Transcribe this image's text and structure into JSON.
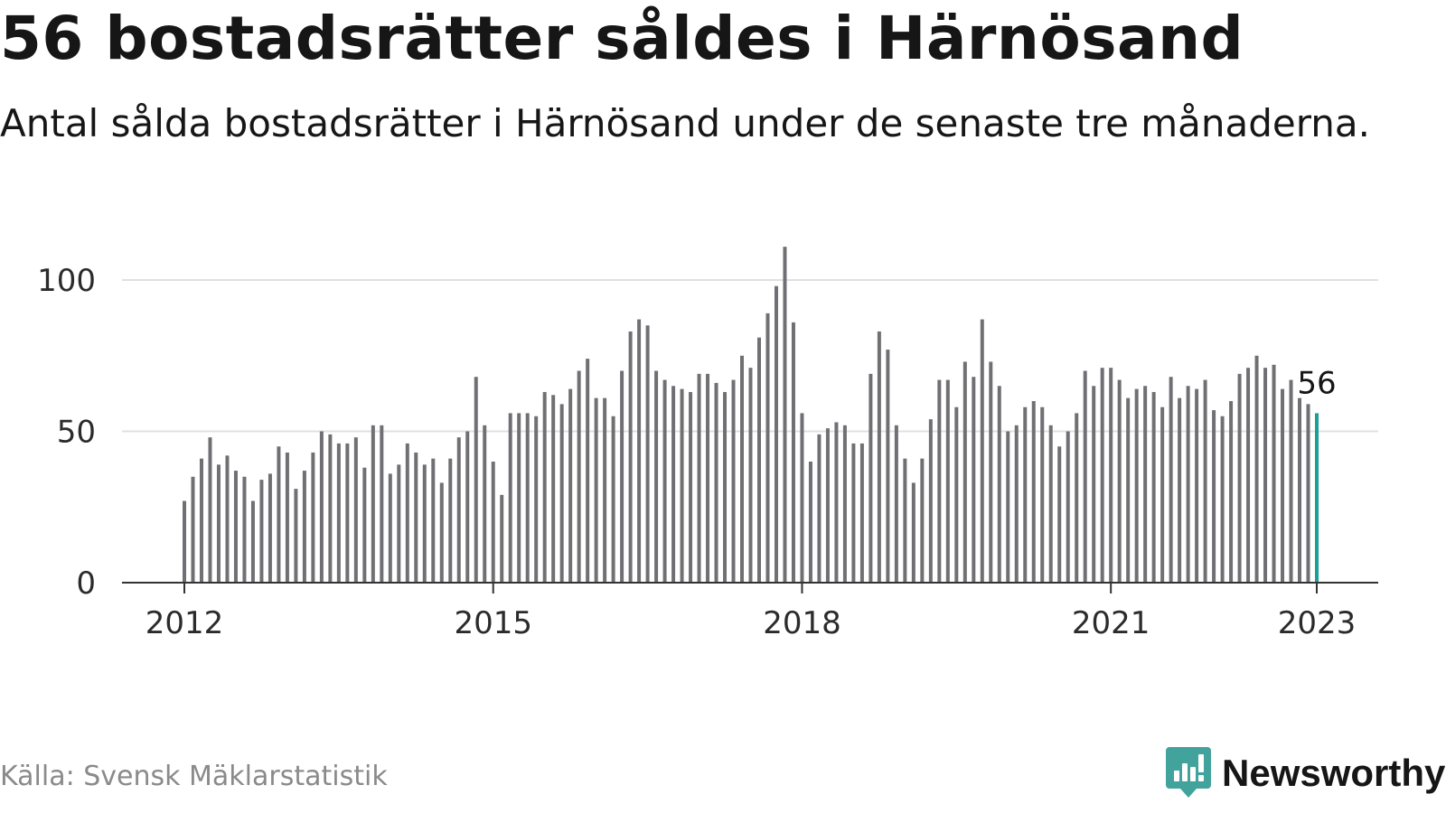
{
  "title": "56 bostadsrätter såldes i Härnösand",
  "subtitle": "Antal sålda bostadsrätter i Härnösand under de senaste tre månaderna.",
  "source": "Källa: Svensk Mäklarstatistik",
  "brand": "Newsworthy",
  "colors": {
    "bar": "#707074",
    "highlight": "#1a9f99",
    "grid": "#e0e0e0",
    "axis": "#333333",
    "brand": "#42a39c"
  },
  "chart_data": {
    "type": "bar",
    "title": "56 bostadsrätter såldes i Härnösand",
    "subtitle": "Antal sålda bostadsrätter i Härnösand under de senaste tre månaderna.",
    "xlabel": "",
    "ylabel": "",
    "ylim": [
      0,
      115
    ],
    "yticks": [
      0,
      50,
      100
    ],
    "xticks": [
      "2012",
      "2015",
      "2018",
      "2021",
      "2023"
    ],
    "grid": true,
    "legend": "none",
    "start": "2012-01",
    "values": [
      27,
      35,
      41,
      48,
      39,
      42,
      37,
      35,
      27,
      34,
      36,
      45,
      43,
      31,
      37,
      43,
      50,
      49,
      46,
      46,
      48,
      38,
      52,
      52,
      36,
      39,
      46,
      43,
      39,
      41,
      33,
      41,
      48,
      50,
      68,
      52,
      40,
      29,
      56,
      56,
      56,
      55,
      63,
      62,
      59,
      64,
      70,
      74,
      61,
      61,
      55,
      70,
      83,
      87,
      85,
      70,
      67,
      65,
      64,
      63,
      69,
      69,
      66,
      63,
      67,
      75,
      71,
      81,
      89,
      98,
      111,
      86,
      56,
      40,
      49,
      51,
      53,
      52,
      46,
      46,
      69,
      83,
      77,
      52,
      41,
      33,
      41,
      54,
      67,
      67,
      58,
      73,
      68,
      87,
      73,
      65,
      50,
      52,
      58,
      60,
      58,
      52,
      45,
      50,
      56,
      70,
      65,
      71,
      71,
      67,
      61,
      64,
      65,
      63,
      58,
      68,
      61,
      65,
      64,
      67,
      57,
      55,
      60,
      69,
      71,
      75,
      71,
      72,
      64,
      67,
      61,
      59,
      56
    ],
    "highlight_label": "56"
  }
}
